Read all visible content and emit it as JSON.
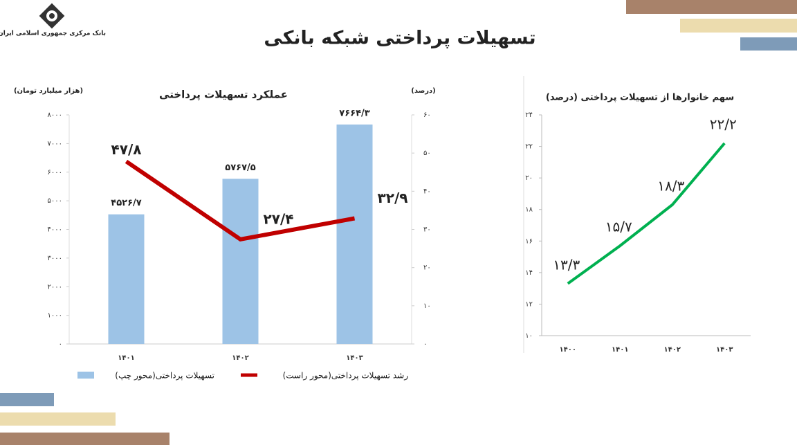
{
  "header": {
    "bank_name": "بانک مرکزی جمهوری اسلامی ایران",
    "title": "تسهیلات پرداختی شبکه بانکی"
  },
  "chart_data": [
    {
      "type": "bar",
      "title": "عملکرد تسهیلات پرداختی",
      "y_label": "(هزار میلیارد تومان)",
      "y2_label": "(درصد)",
      "categories": [
        "۱۴۰۱",
        "۱۴۰۲",
        "۱۴۰۳"
      ],
      "series": [
        {
          "name": "تسهیلات پرداختی(محور چپ)",
          "type": "bar",
          "color": "#9dc3e6",
          "label_color": "#2e75b6",
          "values": [
            4526.7,
            5767.5,
            7664.3
          ],
          "value_labels": [
            "۴۵۲۶/۷",
            "۵۷۶۷/۵",
            "۷۶۶۴/۳"
          ]
        },
        {
          "name": "رشد تسهیلات پرداختی(محور راست)",
          "type": "line",
          "axis": "y2",
          "color": "#c00000",
          "label_color": "#c00000",
          "values": [
            47.8,
            27.4,
            32.9
          ],
          "value_labels": [
            "۴۷/۸",
            "۲۷/۴",
            "۳۲/۹"
          ]
        }
      ],
      "ylim": [
        0,
        8000
      ],
      "yticks": [
        {
          "value": 0,
          "label": "۰"
        },
        {
          "value": 1000,
          "label": "۱۰۰۰"
        },
        {
          "value": 2000,
          "label": "۲۰۰۰"
        },
        {
          "value": 3000,
          "label": "۳۰۰۰"
        },
        {
          "value": 4000,
          "label": "۴۰۰۰"
        },
        {
          "value": 5000,
          "label": "۵۰۰۰"
        },
        {
          "value": 6000,
          "label": "۶۰۰۰"
        },
        {
          "value": 7000,
          "label": "۷۰۰۰"
        },
        {
          "value": 8000,
          "label": "۸۰۰۰"
        }
      ],
      "y2lim": [
        0,
        60
      ],
      "y2ticks": [
        {
          "value": 0,
          "label": "۰"
        },
        {
          "value": 10,
          "label": "۱۰"
        },
        {
          "value": 20,
          "label": "۲۰"
        },
        {
          "value": 30,
          "label": "۳۰"
        },
        {
          "value": 40,
          "label": "۴۰"
        },
        {
          "value": 50,
          "label": "۵۰"
        },
        {
          "value": 60,
          "label": "۶۰"
        }
      ],
      "legend": "bottom"
    },
    {
      "type": "line",
      "title": "سهم خانوارها از تسهیلات پرداختی (درصد)",
      "categories": [
        "۱۴۰۰",
        "۱۴۰۱",
        "۱۴۰۲",
        "۱۴۰۳"
      ],
      "values": [
        13.3,
        15.7,
        18.3,
        22.2
      ],
      "value_labels": [
        "۱۳/۳",
        "۱۵/۷",
        "۱۸/۳",
        "۲۲/۲"
      ],
      "color": "#00b050",
      "ylim": [
        10,
        24
      ],
      "yticks": [
        {
          "value": 10,
          "label": "۱۰"
        },
        {
          "value": 12,
          "label": "۱۲"
        },
        {
          "value": 14,
          "label": "۱۴"
        },
        {
          "value": 16,
          "label": "۱۶"
        },
        {
          "value": 18,
          "label": "۱۸"
        },
        {
          "value": 20,
          "label": "۲۰"
        },
        {
          "value": 22,
          "label": "۲۲"
        },
        {
          "value": 24,
          "label": "۲۴"
        }
      ]
    }
  ]
}
